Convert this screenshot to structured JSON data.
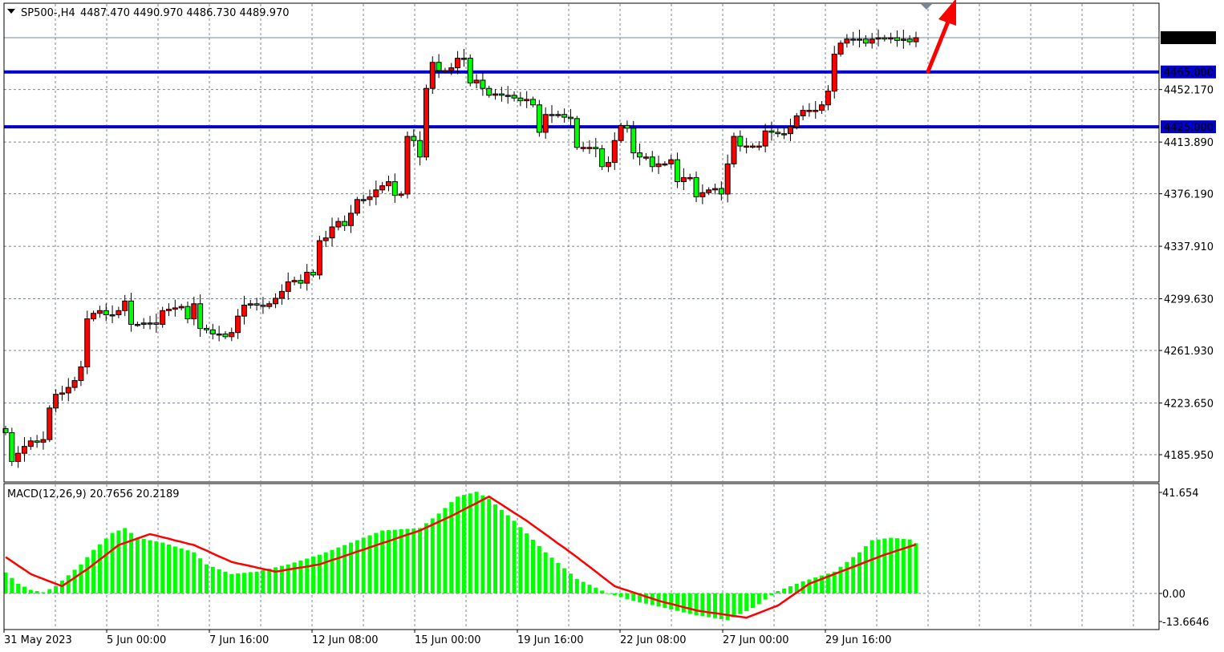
{
  "header": {
    "symbol_timeframe": "SP500-,H4",
    "ohlc": "4487.470 4490.970 4486.730 4489.970"
  },
  "colors": {
    "bull_candle": "#ff0000",
    "bear_candle": "#00ff00",
    "level_line": "#0000c8",
    "arrow": "#ff0000",
    "macd_histogram": "#00ff00",
    "macd_signal": "#ff0000",
    "grid": "#778899",
    "current_price_label_bg": "#000000"
  },
  "chart_data": [
    {
      "type": "candlestick",
      "title": "SP500-,H4",
      "ylim": [
        4170,
        4510
      ],
      "grid": true,
      "y_ticks": [
        "4489.970",
        "4452.170",
        "4413.890",
        "4376.190",
        "4337.910",
        "4299.630",
        "4261.930",
        "4223.650",
        "4185.950"
      ],
      "y_tick_values": [
        4489.97,
        4452.17,
        4413.89,
        4376.19,
        4337.91,
        4299.63,
        4261.93,
        4223.65,
        4185.95
      ],
      "x_ticks": [
        "31 May 2023",
        "5 Jun 00:00",
        "7 Jun 16:00",
        "12 Jun 08:00",
        "15 Jun 00:00",
        "19 Jun 16:00",
        "22 Jun 08:00",
        "27 Jun 00:00",
        "29 Jun 16:00"
      ],
      "current_price": "4489.970",
      "horizontal_levels": [
        {
          "label": "4465.000",
          "value": 4465.0
        },
        {
          "label": "4425.000",
          "value": 4425.0
        }
      ],
      "annotation": "red-up-arrow",
      "first_open": 4205,
      "closes": [
        4202,
        4181,
        4187,
        4192,
        4196,
        4195,
        4197,
        4220,
        4230,
        4231,
        4235,
        4240,
        4250,
        4285,
        4289,
        4291,
        4288,
        4288,
        4291,
        4298,
        4281,
        4281,
        4282,
        4282,
        4281,
        4291,
        4292,
        4293,
        4294,
        4285,
        4296,
        4278,
        4277,
        4274,
        4274,
        4272,
        4275,
        4287,
        4295,
        4296,
        4295,
        4294,
        4296,
        4300,
        4305,
        4312,
        4313,
        4311,
        4319,
        4317,
        4342,
        4344,
        4352,
        4356,
        4353,
        4362,
        4372,
        4372,
        4374,
        4379,
        4382,
        4385,
        4375,
        4376,
        4418,
        4415,
        4403,
        4453,
        4472,
        4466,
        4466,
        4468,
        4475,
        4475,
        4457,
        4459,
        4453,
        4448,
        4449,
        4448,
        4448,
        4446,
        4444,
        4445,
        4441,
        4421,
        4434,
        4434,
        4434,
        4432,
        4431,
        4410,
        4410,
        4410,
        4409,
        4396,
        4399,
        4415,
        4426,
        4424,
        4406,
        4403,
        4403,
        4396,
        4398,
        4398,
        4401,
        4385,
        4388,
        4388,
        4374,
        4377,
        4379,
        4380,
        4376,
        4398,
        4418,
        4411,
        4411,
        4411,
        4411,
        4422,
        4421,
        4420,
        4420,
        4425,
        4433,
        4437,
        4437,
        4437,
        4441,
        4451,
        4478,
        4486,
        4489,
        4489,
        4489,
        4486,
        4489,
        4490,
        4489,
        4490,
        4488,
        4489,
        4487,
        4489.97
      ]
    },
    {
      "type": "bar+line",
      "title": "MACD(12,26,9) 20.7656 20.2189",
      "ylim": [
        -13.6646,
        41.654
      ],
      "y_ticks": [
        "41.654",
        "0.00",
        "-13.6646"
      ],
      "y_tick_values": [
        41.654,
        0,
        -13.6646
      ],
      "histogram": [
        8.7,
        6.4,
        4,
        2.8,
        1.5,
        1,
        0.5,
        1.8,
        3,
        5.3,
        7.5,
        9.8,
        12,
        15,
        18,
        20.3,
        22.7,
        25,
        26,
        27,
        25,
        23,
        22.5,
        22,
        21.5,
        21,
        20.2,
        19.4,
        18.6,
        17.8,
        17,
        14.5,
        12,
        11,
        10,
        9,
        8,
        8.3,
        8.5,
        8.8,
        9,
        9.6,
        10.2,
        10.8,
        11.4,
        12,
        12.8,
        13.6,
        14.4,
        15.2,
        16,
        17,
        18,
        19,
        20,
        21,
        22,
        23,
        24,
        25,
        26,
        26.2,
        26.3,
        26.5,
        26.7,
        26.8,
        27,
        29,
        31,
        33,
        35.3,
        37.7,
        40,
        40.7,
        41.3,
        42,
        40.5,
        39,
        36.8,
        34.5,
        32.3,
        30,
        27.4,
        24.8,
        22.2,
        19.6,
        17,
        14.8,
        12.6,
        10.4,
        8.2,
        6,
        4.8,
        3.6,
        2.4,
        1.2,
        0,
        -0.8,
        -1.5,
        -2.3,
        -3,
        -3.6,
        -4.2,
        -4.8,
        -5.4,
        -6,
        -6.6,
        -7.2,
        -7.8,
        -8.4,
        -9,
        -9.4,
        -9.8,
        -10.2,
        -10.6,
        -11,
        -9.8,
        -8.5,
        -7.3,
        -6,
        -4.3,
        -2.5,
        -0.8,
        1,
        2,
        3,
        4,
        5,
        5.8,
        6.6,
        7.4,
        8.2,
        9,
        11,
        13,
        15,
        17,
        19.5,
        22,
        22.3,
        22.7,
        23,
        22.8,
        22.5,
        22.3,
        20.7656
      ],
      "signal": [
        15,
        13.3,
        11.5,
        9.8,
        8,
        7,
        6,
        5,
        4,
        3,
        4.8,
        6.5,
        8.3,
        10,
        12,
        14,
        16,
        18,
        20,
        20.9,
        21.8,
        22.7,
        23.6,
        24.5,
        23.9,
        23.2,
        22.6,
        21.9,
        21.3,
        20.6,
        20,
        18.8,
        17.7,
        16.5,
        15.3,
        14.2,
        13,
        12.4,
        11.9,
        11.3,
        10.7,
        10.1,
        9.6,
        9,
        9.4,
        9.9,
        10.3,
        10.7,
        11.1,
        11.6,
        12,
        12.9,
        13.8,
        14.6,
        15.5,
        16.4,
        17.3,
        18.1,
        19,
        19.9,
        20.8,
        21.6,
        22.5,
        23.4,
        24.3,
        25.1,
        26,
        27.2,
        28.4,
        29.6,
        30.8,
        32,
        33.3,
        34.7,
        36,
        37.3,
        38.7,
        40,
        38.3,
        36.7,
        35,
        33.3,
        31.7,
        30,
        28.1,
        26.3,
        24.4,
        22.5,
        20.6,
        18.8,
        16.9,
        15,
        13,
        11,
        9,
        7,
        5,
        3,
        2.1,
        1.3,
        0.4,
        -0.4,
        -1.3,
        -2.1,
        -3,
        -3.7,
        -4.3,
        -5,
        -5.7,
        -6.3,
        -7,
        -7.4,
        -7.8,
        -8.1,
        -8.5,
        -8.9,
        -9.3,
        -9.6,
        -10,
        -9,
        -8,
        -7,
        -6,
        -5,
        -3.2,
        -1.4,
        0.4,
        2.2,
        4,
        5,
        6,
        7,
        8,
        9,
        10,
        11,
        12,
        13,
        14,
        15,
        16,
        16.8,
        17.7,
        18.5,
        19.4,
        20.2189
      ]
    }
  ],
  "macd_panel": {
    "label": "MACD(12,26,9) 20.7656 20.2189"
  }
}
